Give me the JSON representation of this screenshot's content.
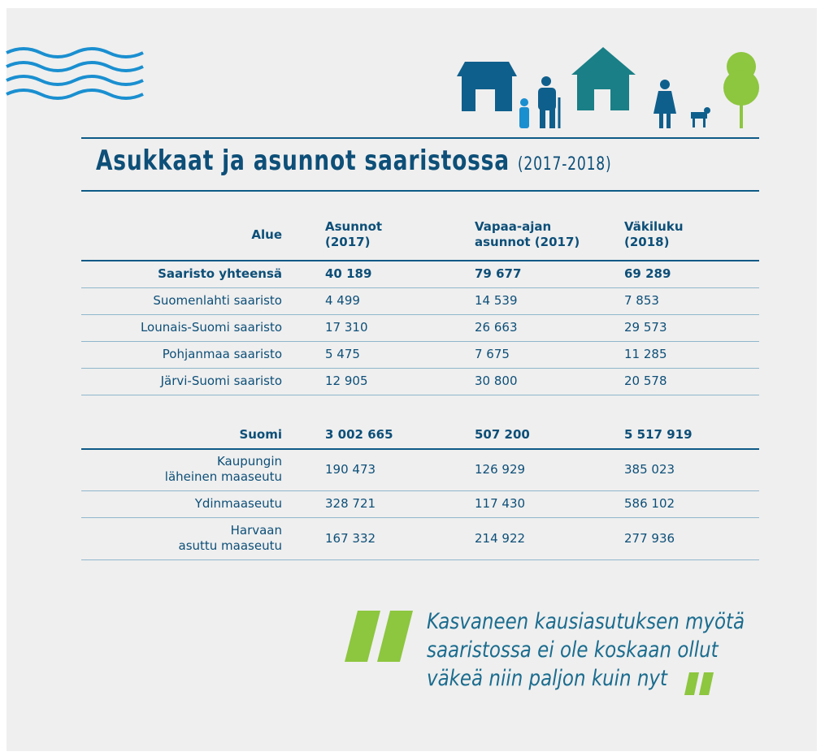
{
  "header": {
    "title": "Asukkaat ja asunnot saaristossa",
    "subtitle": "(2017-2018)"
  },
  "table": {
    "columns": [
      "Alue",
      "Asunnot\n(2017)",
      "Vapaa-ajan\nasunnot (2017)",
      "Väkiluku\n(2018)"
    ],
    "groups": [
      {
        "rows": [
          [
            "Saaristo yhteensä",
            "40 189",
            "79 677",
            "69 289"
          ],
          [
            "Suomenlahti saaristo",
            "4 499",
            "14 539",
            "7 853"
          ],
          [
            "Lounais-Suomi saaristo",
            "17 310",
            "26 663",
            "29 573"
          ],
          [
            "Pohjanmaa saaristo",
            "5 475",
            "7 675",
            "11 285"
          ],
          [
            "Järvi-Suomi saaristo",
            "12 905",
            "30 800",
            "20 578"
          ]
        ]
      },
      {
        "rows": [
          [
            "Suomi",
            "3 002 665",
            "507 200",
            "5 517 919"
          ],
          [
            "Kaupungin\nläheinen maaseutu",
            "190 473",
            "126 929",
            "385 023"
          ],
          [
            "Ydinmaaseutu",
            "328 721",
            "117 430",
            "586 102"
          ],
          [
            "Harvaan\nasuttu maaseutu",
            "167 332",
            "214 922",
            "277 936"
          ]
        ]
      }
    ]
  },
  "quote": {
    "lines": [
      "Kasvaneen kausiasutuksen myötä",
      "saaristossa ei ole koskaan ollut",
      "väkeä niin paljon kuin nyt"
    ]
  }
}
